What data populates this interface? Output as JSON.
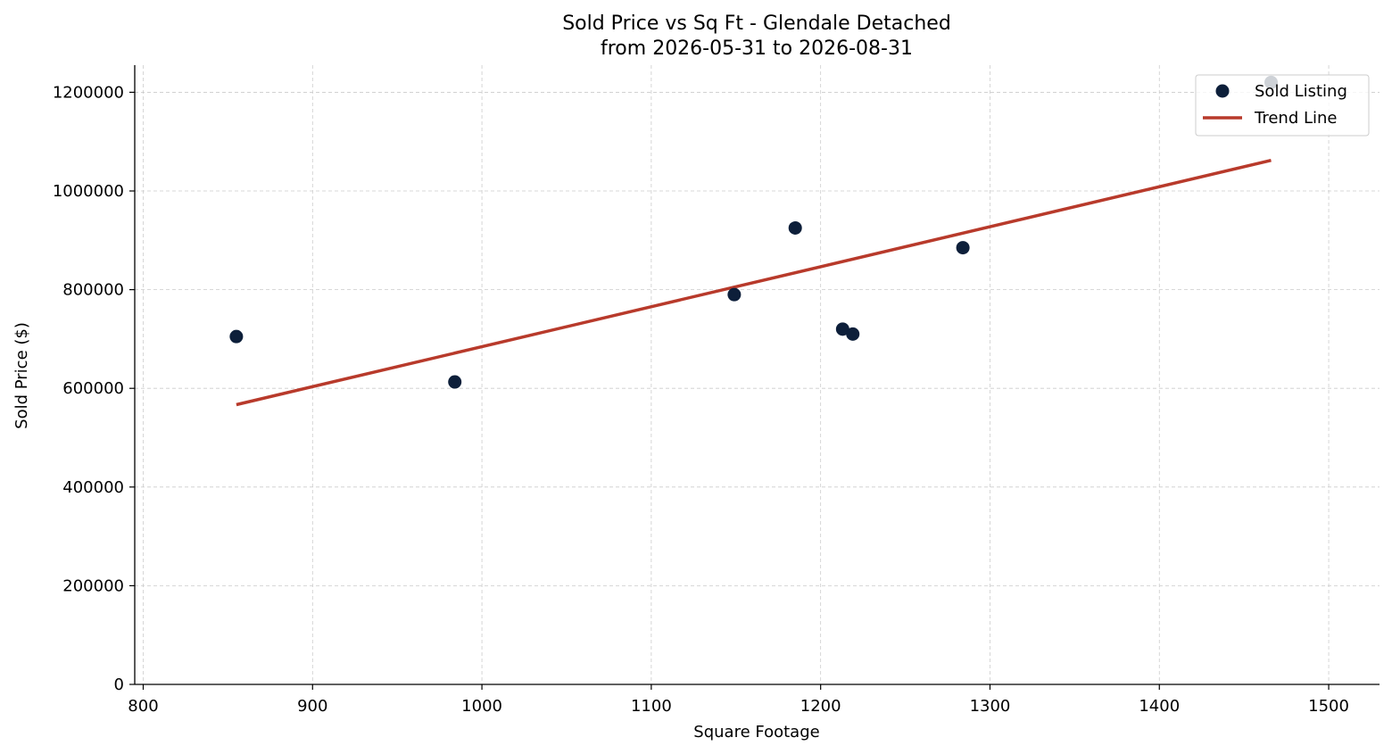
{
  "chart_data": {
    "type": "scatter",
    "title": "Sold Price vs Sq Ft - Glendale Detached",
    "subtitle": "from 2026-05-31 to 2026-08-31",
    "xlabel": "Square Footage",
    "ylabel": "Sold Price ($)",
    "xlim": [
      795,
      1530
    ],
    "ylim": [
      0,
      1255000
    ],
    "xticks": [
      800,
      900,
      1000,
      1100,
      1200,
      1300,
      1400,
      1500
    ],
    "yticks": [
      0,
      200000,
      400000,
      600000,
      800000,
      1000000,
      1200000
    ],
    "grid": true,
    "legend_position": "top-right",
    "series": [
      {
        "name": "Sold Listing",
        "kind": "scatter",
        "color": "#0d1f3a",
        "points": [
          {
            "x": 855,
            "y": 705000
          },
          {
            "x": 984,
            "y": 613000
          },
          {
            "x": 1149,
            "y": 790000
          },
          {
            "x": 1185,
            "y": 925000
          },
          {
            "x": 1213,
            "y": 720000
          },
          {
            "x": 1219,
            "y": 710000
          },
          {
            "x": 1284,
            "y": 885000
          },
          {
            "x": 1466,
            "y": 1220000
          }
        ]
      },
      {
        "name": "Trend Line",
        "kind": "line",
        "color": "#b83a2b",
        "points": [
          {
            "x": 855,
            "y": 567000
          },
          {
            "x": 1466,
            "y": 1062000
          }
        ]
      }
    ]
  }
}
